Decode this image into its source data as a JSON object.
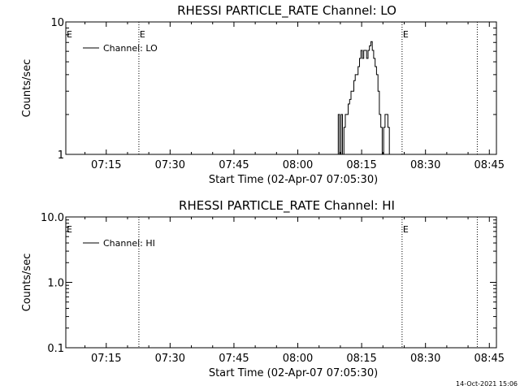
{
  "chart_data": [
    {
      "type": "line",
      "title": "RHESSI PARTICLE_RATE Channel: LO",
      "xlabel": "Start Time (02-Apr-07 07:05:30)",
      "ylabel": "Counts/sec",
      "yscale": "log",
      "ylim": [
        1,
        10
      ],
      "xlim": [
        "07:05:30",
        "08:46:40"
      ],
      "x_ticks": [
        "07:15",
        "07:30",
        "07:45",
        "08:00",
        "08:15",
        "08:30",
        "08:45"
      ],
      "y_ticks": [
        "1",
        "10"
      ],
      "legend": {
        "entries": [
          "Channel: LO"
        ],
        "position": "top-left"
      },
      "grid": false,
      "flag_lines": [
        {
          "time": "07:22:40",
          "label": "E"
        },
        {
          "time": "08:24:30",
          "label": "E"
        },
        {
          "time": "08:42:10",
          "label": ""
        }
      ],
      "corner_flag_label": "E",
      "series": [
        {
          "name": "Channel: LO",
          "x": [
            "08:09:20",
            "08:09:40",
            "08:10:00",
            "08:10:20",
            "08:10:40",
            "08:11:00",
            "08:11:20",
            "08:11:40",
            "08:12:00",
            "08:12:20",
            "08:12:40",
            "08:13:00",
            "08:13:20",
            "08:13:40",
            "08:14:00",
            "08:14:20",
            "08:14:40",
            "08:15:00",
            "08:15:20",
            "08:15:40",
            "08:16:00",
            "08:16:20",
            "08:16:40",
            "08:17:00",
            "08:17:20",
            "08:17:40",
            "08:18:00",
            "08:18:20",
            "08:18:40",
            "08:19:00",
            "08:19:20",
            "08:19:40",
            "08:20:00",
            "08:20:20",
            "08:20:40",
            "08:21:00",
            "08:21:20",
            "08:21:40"
          ],
          "y": [
            1,
            2,
            1,
            2,
            1,
            1.6,
            2,
            2,
            2.4,
            2.6,
            3,
            3,
            3.6,
            4,
            4,
            4.6,
            5.3,
            6.1,
            5.3,
            6.1,
            6.1,
            5.3,
            6.1,
            6.6,
            7.1,
            6.1,
            5.3,
            4.6,
            4,
            3,
            2,
            1.6,
            1,
            1.6,
            2,
            2,
            1.6,
            1
          ]
        }
      ]
    },
    {
      "type": "line",
      "title": "RHESSI PARTICLE_RATE Channel: HI",
      "xlabel": "Start Time (02-Apr-07 07:05:30)",
      "ylabel": "Counts/sec",
      "yscale": "log",
      "ylim": [
        0.1,
        10
      ],
      "xlim": [
        "07:05:30",
        "08:46:40"
      ],
      "x_ticks": [
        "07:15",
        "07:30",
        "07:45",
        "08:00",
        "08:15",
        "08:30",
        "08:45"
      ],
      "y_ticks": [
        "0.1",
        "1.0",
        "10.0"
      ],
      "legend": {
        "entries": [
          "Channel: HI"
        ],
        "position": "top-left"
      },
      "grid": false,
      "flag_lines": [
        {
          "time": "07:22:40",
          "label": ""
        },
        {
          "time": "08:24:30",
          "label": "E"
        },
        {
          "time": "08:42:10",
          "label": ""
        }
      ],
      "corner_flag_label": "E",
      "series": [
        {
          "name": "Channel: HI",
          "x": [],
          "y": []
        }
      ]
    }
  ],
  "footer": {
    "timestamp": "14-Oct-2021 15:06"
  }
}
